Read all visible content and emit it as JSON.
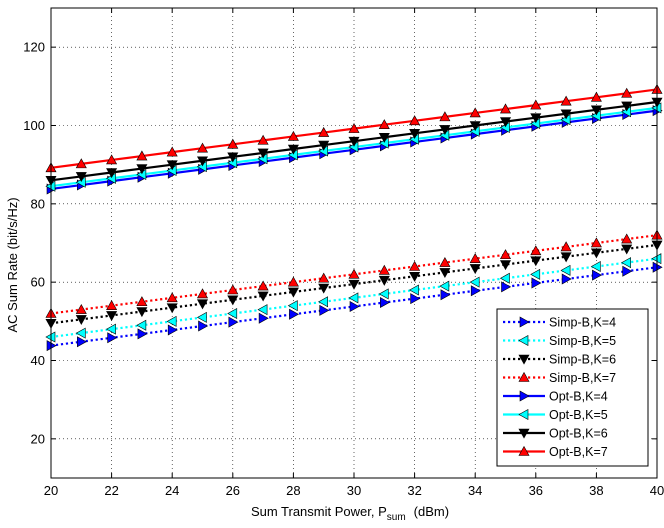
{
  "chart_data": {
    "type": "line",
    "title": "",
    "xlabel": "Sum Transmit Power, P",
    "xlabel_sub": "sum",
    "xlabel_unit": "(dBm)",
    "ylabel": "AC Sum Rate (bit/s/Hz)",
    "xlim": [
      20,
      40
    ],
    "ylim": [
      10,
      130
    ],
    "xticks": [
      20,
      22,
      24,
      26,
      28,
      30,
      32,
      34,
      36,
      38,
      40
    ],
    "yticks": [
      20,
      40,
      60,
      80,
      100,
      120
    ],
    "grid": true,
    "legend_position": "bottom-right",
    "x": [
      20,
      21,
      22,
      23,
      24,
      25,
      26,
      27,
      28,
      29,
      30,
      31,
      32,
      33,
      34,
      35,
      36,
      37,
      38,
      39,
      40
    ],
    "series": [
      {
        "name": "Simp-B,K=4",
        "color": "#0000ff",
        "style": "dotted",
        "marker": "triangle-right",
        "values": [
          43.8,
          44.8,
          45.8,
          46.8,
          47.8,
          48.8,
          49.8,
          50.8,
          51.8,
          52.8,
          53.8,
          54.8,
          55.8,
          56.8,
          57.8,
          58.8,
          59.8,
          60.8,
          61.8,
          62.8,
          63.8
        ]
      },
      {
        "name": "Simp-B,K=5",
        "color": "#00ffff",
        "style": "dotted",
        "marker": "triangle-left",
        "values": [
          46.0,
          47.0,
          48.0,
          49.0,
          50.0,
          51.0,
          52.0,
          53.0,
          54.0,
          55.0,
          56.0,
          57.0,
          58.0,
          59.0,
          60.0,
          61.0,
          62.0,
          63.0,
          64.0,
          65.0,
          66.0
        ]
      },
      {
        "name": "Simp-B,K=6",
        "color": "#000000",
        "style": "dotted",
        "marker": "triangle-down",
        "values": [
          49.5,
          50.5,
          51.5,
          52.5,
          53.5,
          54.5,
          55.5,
          56.5,
          57.5,
          58.5,
          59.5,
          60.5,
          61.5,
          62.5,
          63.5,
          64.5,
          65.5,
          66.5,
          67.5,
          68.5,
          69.5
        ]
      },
      {
        "name": "Simp-B,K=7",
        "color": "#ff0000",
        "style": "dotted",
        "marker": "triangle-up",
        "values": [
          52.0,
          53.0,
          54.0,
          55.0,
          56.0,
          57.0,
          58.0,
          59.0,
          60.0,
          61.0,
          62.0,
          63.0,
          64.0,
          65.0,
          66.0,
          67.0,
          68.0,
          69.0,
          70.0,
          71.0,
          72.0
        ]
      },
      {
        "name": "Opt-B,K=4",
        "color": "#0000ff",
        "style": "solid",
        "marker": "triangle-right",
        "values": [
          83.8,
          84.8,
          85.8,
          86.8,
          87.8,
          88.8,
          89.8,
          90.8,
          91.8,
          92.8,
          93.8,
          94.8,
          95.8,
          96.8,
          97.8,
          98.8,
          99.8,
          100.8,
          101.8,
          102.8,
          103.8
        ]
      },
      {
        "name": "Opt-B,K=5",
        "color": "#00ffff",
        "style": "solid",
        "marker": "triangle-left",
        "values": [
          84.5,
          85.5,
          86.5,
          87.5,
          88.5,
          89.5,
          90.5,
          91.5,
          92.5,
          93.5,
          94.5,
          95.5,
          96.5,
          97.5,
          98.5,
          99.5,
          100.5,
          101.5,
          102.5,
          103.5,
          104.5
        ]
      },
      {
        "name": "Opt-B,K=6",
        "color": "#000000",
        "style": "solid",
        "marker": "triangle-down",
        "values": [
          86.0,
          87.0,
          88.0,
          89.0,
          90.0,
          91.0,
          92.0,
          93.0,
          94.0,
          95.0,
          96.0,
          97.0,
          98.0,
          99.0,
          100.0,
          101.0,
          102.0,
          103.0,
          104.0,
          105.0,
          106.0
        ]
      },
      {
        "name": "Opt-B,K=7",
        "color": "#ff0000",
        "style": "solid",
        "marker": "triangle-up",
        "values": [
          89.2,
          90.2,
          91.2,
          92.2,
          93.2,
          94.2,
          95.2,
          96.2,
          97.2,
          98.2,
          99.2,
          100.2,
          101.2,
          102.2,
          103.2,
          104.2,
          105.2,
          106.2,
          107.2,
          108.2,
          109.2
        ]
      }
    ]
  }
}
